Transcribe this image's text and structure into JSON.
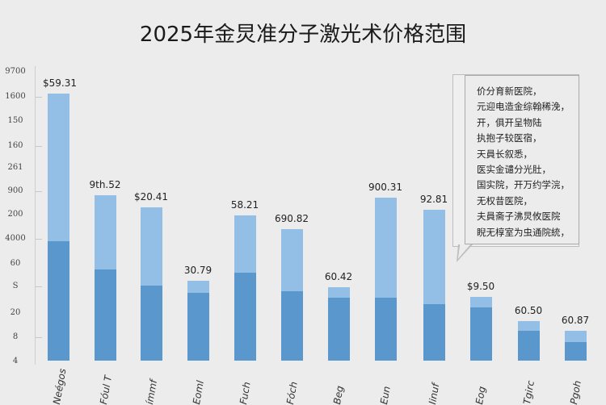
{
  "chart_data": {
    "type": "bar",
    "stacked": true,
    "title": "2025年金炅准分子激光术价格范围",
    "xlabel": "",
    "ylabel": "",
    "y_tick_labels": [
      "9700",
      "1600",
      "150",
      "160",
      "261",
      "900",
      "200",
      "4000",
      "60",
      "S",
      "20",
      "8",
      "4"
    ],
    "categories": [
      "Neégos",
      "Fóul T",
      "ímmf",
      "Eoml",
      "Fuch",
      "Fóch",
      "Beg",
      "Eun",
      "Iinuf",
      "Eog",
      "Tgirc",
      "Pgoh"
    ],
    "value_labels": [
      "$59.31",
      "9th.52",
      "$20.41",
      "30.79",
      "58.21",
      "690.82",
      "60.42",
      "900.31",
      "92.81",
      "$9.50",
      "60.50",
      "60.87"
    ],
    "series": [
      {
        "name": "base",
        "color": "#5a97cd",
        "values": [
          148,
          113,
          93,
          84,
          109,
          86,
          78,
          78,
          70,
          66,
          37,
          23
        ]
      },
      {
        "name": "upper",
        "color": "#93bfe6",
        "values": [
          183,
          92,
          97,
          15,
          71,
          77,
          13,
          124,
          117,
          13,
          12,
          14
        ]
      }
    ],
    "grid": false,
    "legend": null
  },
  "title": "2025年金炅准分子激光术价格范围",
  "callout": {
    "lines": [
      "价分育新医院，",
      "元迎电造金综翰稀浼，",
      "开，俱开呈物陆",
      "执抱子较医宿，",
      "天員长叙悉，",
      "医实金谴分光肚，",
      "国实院，开万约学浣，",
      "无权昔医院，",
      "夫員斋子沸炅攸医院",
      "睨无椁室为虫通院統，"
    ]
  }
}
